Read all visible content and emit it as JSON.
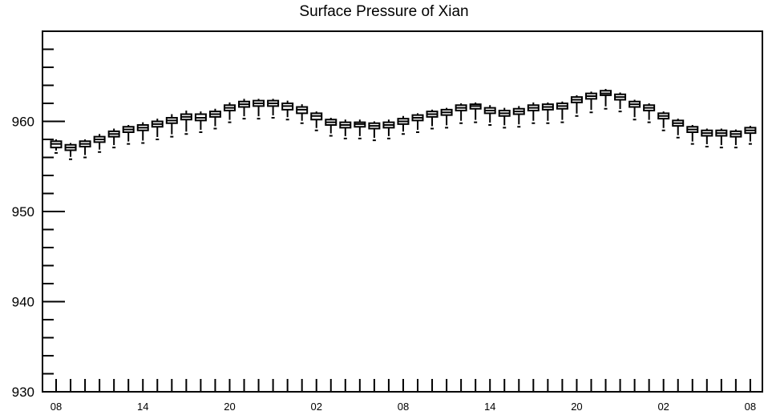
{
  "chart_data": {
    "type": "box",
    "title": "Surface Pressure of Xian",
    "xlabel": "",
    "ylabel": "",
    "ylim": [
      930,
      970
    ],
    "y_ticks": [
      930,
      940,
      950,
      960
    ],
    "x_tick_labels": [
      "08",
      "14",
      "20",
      "02",
      "08",
      "14",
      "20",
      "02",
      "08"
    ],
    "x_range": [
      0,
      48
    ],
    "grid": false,
    "legend": "none",
    "series": [
      {
        "x": 0,
        "min": 956.5,
        "q1": 957.1,
        "median": 957.5,
        "q3": 957.8,
        "max": 958.0
      },
      {
        "x": 1,
        "min": 955.8,
        "q1": 956.8,
        "median": 957.1,
        "q3": 957.4,
        "max": 957.6
      },
      {
        "x": 2,
        "min": 956.0,
        "q1": 957.2,
        "median": 957.5,
        "q3": 957.8,
        "max": 958.0
      },
      {
        "x": 3,
        "min": 956.6,
        "q1": 957.7,
        "median": 958.0,
        "q3": 958.3,
        "max": 958.6
      },
      {
        "x": 4,
        "min": 957.1,
        "q1": 958.3,
        "median": 958.6,
        "q3": 958.9,
        "max": 959.2
      },
      {
        "x": 5,
        "min": 957.5,
        "q1": 958.8,
        "median": 959.1,
        "q3": 959.4,
        "max": 959.6
      },
      {
        "x": 6,
        "min": 957.6,
        "q1": 959.0,
        "median": 959.3,
        "q3": 959.6,
        "max": 959.9
      },
      {
        "x": 7,
        "min": 958.0,
        "q1": 959.4,
        "median": 959.7,
        "q3": 960.0,
        "max": 960.3
      },
      {
        "x": 8,
        "min": 958.3,
        "q1": 959.8,
        "median": 960.1,
        "q3": 960.4,
        "max": 960.8
      },
      {
        "x": 9,
        "min": 958.6,
        "q1": 960.2,
        "median": 960.5,
        "q3": 960.8,
        "max": 961.2
      },
      {
        "x": 10,
        "min": 958.8,
        "q1": 960.1,
        "median": 960.4,
        "q3": 960.8,
        "max": 961.1
      },
      {
        "x": 11,
        "min": 959.2,
        "q1": 960.5,
        "median": 960.8,
        "q3": 961.1,
        "max": 961.4
      },
      {
        "x": 12,
        "min": 959.9,
        "q1": 961.2,
        "median": 961.5,
        "q3": 961.8,
        "max": 962.1
      },
      {
        "x": 13,
        "min": 960.3,
        "q1": 961.6,
        "median": 961.9,
        "q3": 962.2,
        "max": 962.5
      },
      {
        "x": 14,
        "min": 960.3,
        "q1": 961.7,
        "median": 962.0,
        "q3": 962.3,
        "max": 962.5
      },
      {
        "x": 15,
        "min": 960.4,
        "q1": 961.7,
        "median": 962.0,
        "q3": 962.3,
        "max": 962.5
      },
      {
        "x": 16,
        "min": 960.2,
        "q1": 961.3,
        "median": 961.7,
        "q3": 962.0,
        "max": 962.3
      },
      {
        "x": 17,
        "min": 959.8,
        "q1": 960.9,
        "median": 961.3,
        "q3": 961.6,
        "max": 961.9
      },
      {
        "x": 18,
        "min": 959.0,
        "q1": 960.2,
        "median": 960.6,
        "q3": 960.9,
        "max": 961.1
      },
      {
        "x": 19,
        "min": 958.4,
        "q1": 959.6,
        "median": 959.9,
        "q3": 960.2,
        "max": 960.4
      },
      {
        "x": 20,
        "min": 958.1,
        "q1": 959.3,
        "median": 959.6,
        "q3": 959.9,
        "max": 960.2
      },
      {
        "x": 21,
        "min": 958.1,
        "q1": 959.4,
        "median": 959.7,
        "q3": 959.9,
        "max": 960.2
      },
      {
        "x": 22,
        "min": 957.9,
        "q1": 959.2,
        "median": 959.5,
        "q3": 959.8,
        "max": 960.0
      },
      {
        "x": 23,
        "min": 958.1,
        "q1": 959.3,
        "median": 959.6,
        "q3": 959.9,
        "max": 960.2
      },
      {
        "x": 24,
        "min": 958.6,
        "q1": 959.7,
        "median": 960.0,
        "q3": 960.3,
        "max": 960.6
      },
      {
        "x": 25,
        "min": 958.8,
        "q1": 960.1,
        "median": 960.4,
        "q3": 960.7,
        "max": 960.9
      },
      {
        "x": 26,
        "min": 959.2,
        "q1": 960.5,
        "median": 960.8,
        "q3": 961.1,
        "max": 961.3
      },
      {
        "x": 27,
        "min": 959.3,
        "q1": 960.7,
        "median": 961.0,
        "q3": 961.3,
        "max": 961.5
      },
      {
        "x": 28,
        "min": 959.8,
        "q1": 961.2,
        "median": 961.5,
        "q3": 961.8,
        "max": 962.0
      },
      {
        "x": 29,
        "min": 959.9,
        "q1": 961.4,
        "median": 961.7,
        "q3": 961.9,
        "max": 962.1
      },
      {
        "x": 30,
        "min": 959.6,
        "q1": 960.9,
        "median": 961.2,
        "q3": 961.5,
        "max": 961.8
      },
      {
        "x": 31,
        "min": 959.3,
        "q1": 960.6,
        "median": 960.9,
        "q3": 961.2,
        "max": 961.5
      },
      {
        "x": 32,
        "min": 959.4,
        "q1": 960.8,
        "median": 961.1,
        "q3": 961.4,
        "max": 961.7
      },
      {
        "x": 33,
        "min": 959.8,
        "q1": 961.2,
        "median": 961.5,
        "q3": 961.8,
        "max": 962.1
      },
      {
        "x": 34,
        "min": 959.8,
        "q1": 961.3,
        "median": 961.6,
        "q3": 961.9,
        "max": 962.1
      },
      {
        "x": 35,
        "min": 959.9,
        "q1": 961.4,
        "median": 961.7,
        "q3": 962.0,
        "max": 962.2
      },
      {
        "x": 36,
        "min": 960.6,
        "q1": 962.1,
        "median": 962.4,
        "q3": 962.7,
        "max": 962.9
      },
      {
        "x": 37,
        "min": 961.0,
        "q1": 962.5,
        "median": 962.8,
        "q3": 963.1,
        "max": 963.3
      },
      {
        "x": 38,
        "min": 961.4,
        "q1": 962.9,
        "median": 963.1,
        "q3": 963.4,
        "max": 963.6
      },
      {
        "x": 39,
        "min": 961.1,
        "q1": 962.4,
        "median": 962.7,
        "q3": 963.0,
        "max": 963.2
      },
      {
        "x": 40,
        "min": 960.2,
        "q1": 961.6,
        "median": 961.9,
        "q3": 962.2,
        "max": 962.4
      },
      {
        "x": 41,
        "min": 959.9,
        "q1": 961.2,
        "median": 961.5,
        "q3": 961.8,
        "max": 962.0
      },
      {
        "x": 42,
        "min": 959.0,
        "q1": 960.3,
        "median": 960.6,
        "q3": 960.9,
        "max": 961.1
      },
      {
        "x": 43,
        "min": 958.2,
        "q1": 959.5,
        "median": 959.8,
        "q3": 960.1,
        "max": 960.3
      },
      {
        "x": 44,
        "min": 957.5,
        "q1": 958.8,
        "median": 959.1,
        "q3": 959.4,
        "max": 959.6
      },
      {
        "x": 45,
        "min": 957.2,
        "q1": 958.4,
        "median": 958.7,
        "q3": 959.0,
        "max": 959.2
      },
      {
        "x": 46,
        "min": 957.1,
        "q1": 958.4,
        "median": 958.7,
        "q3": 959.0,
        "max": 959.2
      },
      {
        "x": 47,
        "min": 957.1,
        "q1": 958.3,
        "median": 958.6,
        "q3": 958.9,
        "max": 959.1
      },
      {
        "x": 48,
        "min": 957.5,
        "q1": 958.7,
        "median": 959.0,
        "q3": 959.3,
        "max": 959.5
      }
    ]
  }
}
